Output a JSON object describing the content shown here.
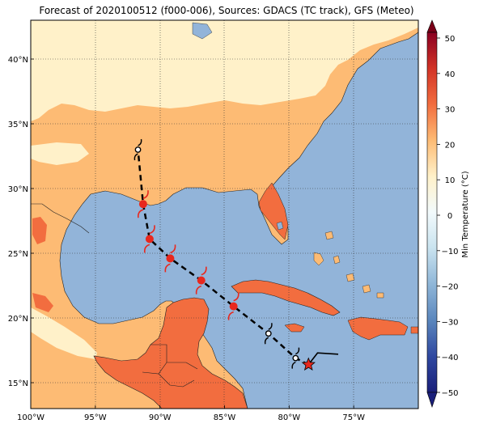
{
  "title": "Forecast of 2020100512 (f000-006), Sources: GDACS (TC track), GFS (Meteo)",
  "map": {
    "lon_range": [
      -100,
      -70
    ],
    "lat_range": [
      13,
      43
    ],
    "x_ticks": [
      "100°W",
      "95°W",
      "90°W",
      "85°W",
      "80°W",
      "75°W"
    ],
    "y_ticks": [
      "15°N",
      "20°N",
      "25°N",
      "30°N",
      "35°N",
      "40°N"
    ],
    "grid": true
  },
  "colorbar": {
    "label": "Min Temperature (°C)",
    "ticks": [
      "50",
      "40",
      "30",
      "20",
      "10",
      "0",
      "−10",
      "−20",
      "−30",
      "−40",
      "−50"
    ],
    "colors": {
      "cold_deep": "#1a1f7a",
      "cold_mid": "#3b5ba8",
      "cold": "#6f97c8",
      "sea": "#92b4d9",
      "cool": "#c9e3ef",
      "zero": "#f2fafc",
      "mild": "#fff1c9",
      "warm": "#fdbb74",
      "hot": "#f26d3f",
      "very_hot": "#d23326",
      "extreme": "#a50026",
      "max": "#7a0018"
    }
  },
  "track": {
    "points": [
      {
        "lon": -78.5,
        "lat": 16.4,
        "kind": "current"
      },
      {
        "lon": -79.5,
        "lat": 16.9,
        "kind": "depression"
      },
      {
        "lon": -81.6,
        "lat": 18.8,
        "kind": "storm"
      },
      {
        "lon": -84.3,
        "lat": 20.9,
        "kind": "hurricane"
      },
      {
        "lon": -86.8,
        "lat": 22.9,
        "kind": "hurricane"
      },
      {
        "lon": -89.2,
        "lat": 24.6,
        "kind": "hurricane"
      },
      {
        "lon": -90.8,
        "lat": 26.1,
        "kind": "hurricane"
      },
      {
        "lon": -91.3,
        "lat": 28.8,
        "kind": "hurricane"
      },
      {
        "lon": -91.7,
        "lat": 33.0,
        "kind": "depression"
      }
    ],
    "past_track": [
      {
        "lon": -78.5,
        "lat": 16.4
      },
      {
        "lon": -77.8,
        "lat": 17.3
      },
      {
        "lon": -76.2,
        "lat": 17.2
      }
    ]
  }
}
